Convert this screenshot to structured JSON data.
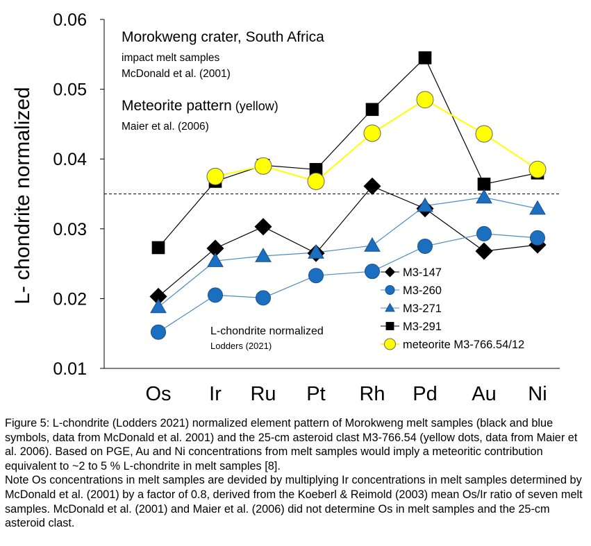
{
  "chart_data": {
    "type": "line",
    "ylabel": "L- chondrite normalized",
    "xlabel": "",
    "ylim": [
      0.01,
      0.06
    ],
    "yticks": [
      "0.01",
      "0.02",
      "0.03",
      "0.04",
      "0.05",
      "0.06"
    ],
    "categories": [
      "Os",
      "Ir",
      "Ru",
      "Pt",
      "Rh",
      "Pd",
      "Au",
      "Ni"
    ],
    "reference_line": 0.035,
    "annotations": {
      "title": "Morokweng crater, South Africa",
      "sub1": "impact melt samples",
      "sub2": "McDonald et al. (2001)",
      "meteorite_main": "Meteorite pattern",
      "meteorite_paren": "(yellow)",
      "meteorite_ref": "Maier et al. (2006)",
      "norm_label": "L-chondrite normalized",
      "norm_ref": "Lodders (2021)"
    },
    "legend_position": "bottom-right",
    "series": [
      {
        "name": "M3-147",
        "marker": "diamond",
        "color": "#000000",
        "line_color": "#000000",
        "values": [
          0.0203,
          0.0272,
          0.0303,
          0.0265,
          0.0361,
          0.0329,
          0.0268,
          0.0277
        ]
      },
      {
        "name": "M3-260",
        "marker": "circle",
        "color": "#1a6fc0",
        "line_color": "#4a8cc8",
        "values": [
          0.0152,
          0.0205,
          0.0201,
          0.0233,
          0.0239,
          0.0275,
          0.0293,
          0.0287
        ]
      },
      {
        "name": "M3-271",
        "marker": "triangle",
        "color": "#1a6fc0",
        "line_color": "#4a8cc8",
        "values": [
          0.0188,
          0.0254,
          0.0261,
          0.0266,
          0.0276,
          0.0333,
          0.0345,
          0.0329
        ]
      },
      {
        "name": "M3-291",
        "marker": "square",
        "color": "#000000",
        "line_color": "#000000",
        "values": [
          0.0273,
          0.0368,
          0.0391,
          0.0385,
          0.0471,
          0.0545,
          0.0364,
          0.038
        ]
      },
      {
        "name": "meteorite M3-766.54/12",
        "marker": "circle",
        "color": "#ffff00",
        "line_color": "#ffff00",
        "values": [
          null,
          0.0375,
          0.039,
          0.0368,
          0.0437,
          0.0485,
          0.0436,
          0.0385
        ]
      }
    ]
  },
  "caption": {
    "p1": "Figure 5: L-chondrite (Lodders 2021) normalized element pattern of Morokweng melt samples (black and blue symbols, data from McDonald et al. 2001) and the 25-cm asteroid clast M3-766.54 (yellow dots, data from Maier et al. 2006). Based on PGE, Au and Ni concentrations from melt samples would imply a meteoritic contribution equivalent to ~2 to 5 % L-chondrite in melt samples [8].",
    "p2": "Note Os concentrations in melt samples are devided by multiplying Ir concentrations in melt samples determined by McDonald et al. (2001) by a factor of 0.8, derived from the Koeberl & Reimold (2003) mean Os/Ir ratio of seven melt samples. McDonald et al. (2001) and Maier et al. (2006) did not determine Os in melt samples and the 25-cm asteroid clast."
  }
}
